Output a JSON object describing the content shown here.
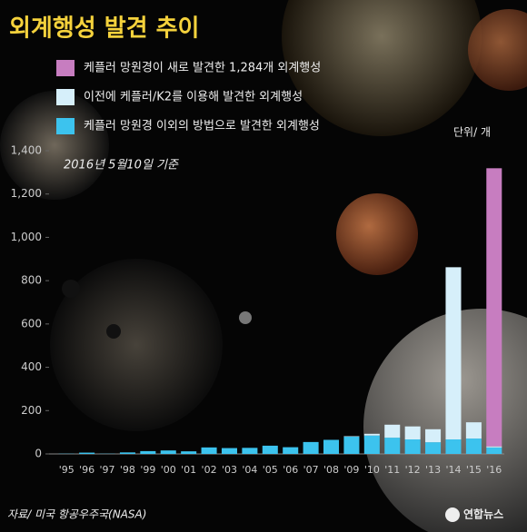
{
  "chart_data": {
    "type": "stacked_bar",
    "title": "외계행성 발견 추이",
    "unit": "단위/ 개",
    "annotation": "2016년 5월10일 기준",
    "source": "자료/ 미국 항공우주국(NASA)",
    "logo": "연합뉴스",
    "categories": [
      "'95",
      "'96",
      "'97",
      "'98",
      "'99",
      "'00",
      "'01",
      "'02",
      "'03",
      "'04",
      "'05",
      "'06",
      "'07",
      "'08",
      "'09",
      "'10",
      "'11",
      "'12",
      "'13",
      "'14",
      "'15",
      "'16"
    ],
    "series": [
      {
        "name": "케플러 망원경 이외의 방법으로 발견한 외계행성",
        "color": "#3cc3ee",
        "values": [
          1,
          6,
          1,
          7,
          13,
          16,
          12,
          30,
          27,
          28,
          38,
          31,
          55,
          65,
          80,
          85,
          75,
          67,
          54,
          67,
          71,
          30
        ]
      },
      {
        "name": "이전에 케플러/K2를 이용해 발견한 외계행성",
        "color": "#d6effa",
        "values": [
          0,
          0,
          0,
          0,
          0,
          0,
          0,
          0,
          0,
          0,
          0,
          0,
          0,
          0,
          2,
          8,
          60,
          60,
          60,
          795,
          75,
          5
        ]
      },
      {
        "name": "케플러 망원경이 새로 발견한 1,284개 외계행성",
        "color": "#c77dc0",
        "values": [
          0,
          0,
          0,
          0,
          0,
          0,
          0,
          0,
          0,
          0,
          0,
          0,
          0,
          0,
          0,
          0,
          0,
          0,
          0,
          0,
          0,
          1284
        ]
      }
    ],
    "ylim": [
      0,
      1400
    ],
    "yticks": [
      0,
      200,
      400,
      600,
      800,
      {
        "value": 1000,
        "label": "1,000"
      },
      {
        "value": 1200,
        "label": "1,200"
      },
      {
        "value": 1400,
        "label": "1,400"
      }
    ],
    "grid": false
  }
}
